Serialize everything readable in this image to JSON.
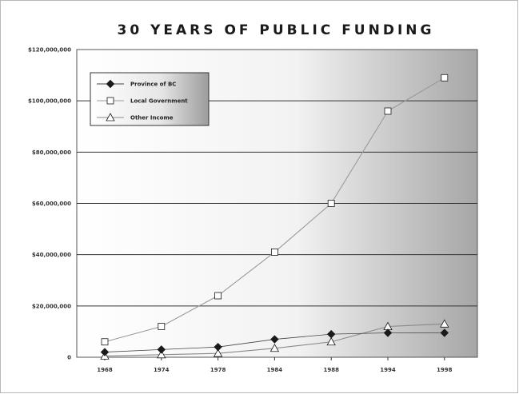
{
  "chart_data": {
    "type": "line",
    "title": "30 YEARS OF PUBLIC FUNDING",
    "xlabel": "",
    "ylabel": "",
    "categories": [
      "1968",
      "1974",
      "1978",
      "1984",
      "1988",
      "1994",
      "1998"
    ],
    "ylim": [
      0,
      120000000
    ],
    "yticks": [
      0,
      20000000,
      40000000,
      60000000,
      80000000,
      100000000,
      120000000
    ],
    "ytick_labels": [
      "0",
      "$20,000,000",
      "$40,000,000",
      "$60,000,000",
      "$80,000,000",
      "$100,000,000",
      "$120,000,000"
    ],
    "grid": true,
    "legend_position": "top-left",
    "series": [
      {
        "name": "Province of BC",
        "marker": "filled-diamond",
        "values": [
          2000000,
          3000000,
          4000000,
          7000000,
          9000000,
          9500000,
          9500000
        ]
      },
      {
        "name": "Local Government",
        "marker": "open-square",
        "values": [
          6000000,
          12000000,
          24000000,
          41000000,
          60000000,
          96000000,
          109000000
        ]
      },
      {
        "name": "Other Income",
        "marker": "open-triangle",
        "values": [
          500000,
          1000000,
          1500000,
          3500000,
          6000000,
          12000000,
          13000000
        ]
      }
    ]
  },
  "colors": {
    "marker_stroke": "#1a1a1a",
    "local_line": "#9a9a9a",
    "other_line": "#8a8a8a",
    "province_line": "#444444",
    "gridline": "#333333",
    "plot_bg_light": "#ffffff",
    "plot_bg_dark": "#a6a6a6"
  }
}
